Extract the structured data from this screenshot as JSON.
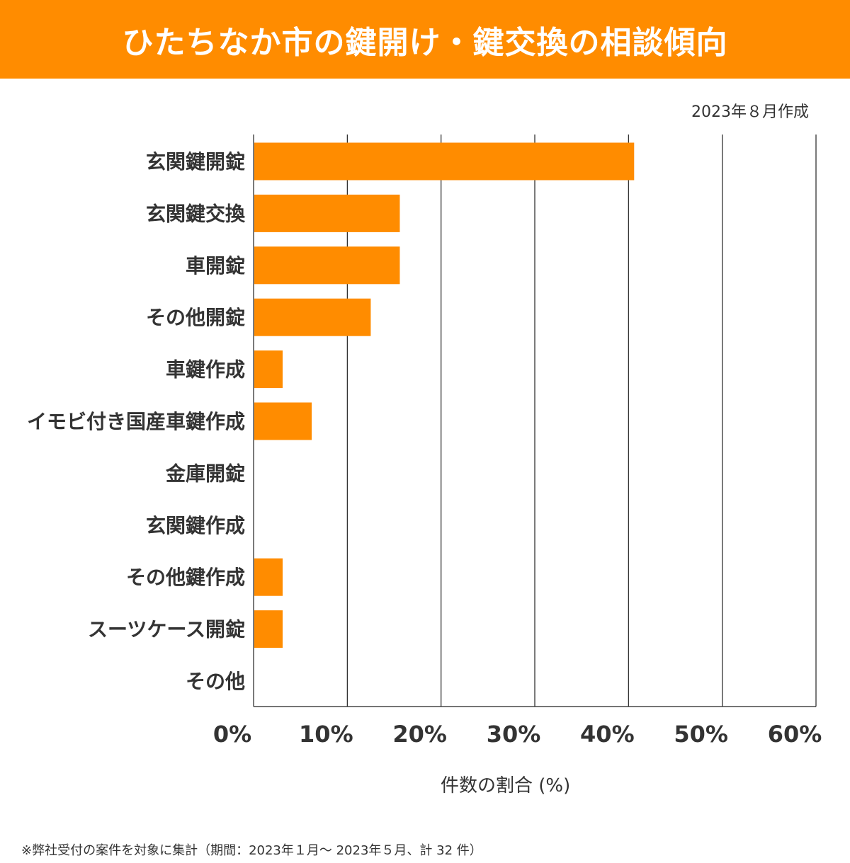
{
  "title": "ひたちなか市の鍵開け・鍵交換の相談傾向",
  "date_note": "2023年８月作成",
  "footnote": "※弊社受付の案件を対象に集計（期間：2023年１月～ 2023年５月、計 32 件）",
  "colors": {
    "accent": "#ff8c00",
    "bar": "#ff8c00",
    "header_text": "#ffffff",
    "text": "#333333",
    "grid": "#222222"
  },
  "chart_data": {
    "type": "bar",
    "orientation": "horizontal",
    "categories": [
      "玄関鍵開錠",
      "玄関鍵交換",
      "車開錠",
      "その他開錠",
      "車鍵作成",
      "イモビ付き国産車鍵作成",
      "金庫開錠",
      "玄関鍵作成",
      "その他鍵作成",
      "スーツケース開錠",
      "その他"
    ],
    "values": [
      40.6,
      15.6,
      15.6,
      12.5,
      3.1,
      6.2,
      0,
      0,
      3.1,
      3.1,
      0
    ],
    "xlim": [
      0,
      60
    ],
    "xticks": [
      0,
      10,
      20,
      30,
      40,
      50,
      60
    ],
    "xtick_labels": [
      "0%",
      "10%",
      "20%",
      "30%",
      "40%",
      "50%",
      "60%"
    ],
    "xlabel": "件数の割合 (%)",
    "ylabel": "",
    "grid": "vertical"
  }
}
